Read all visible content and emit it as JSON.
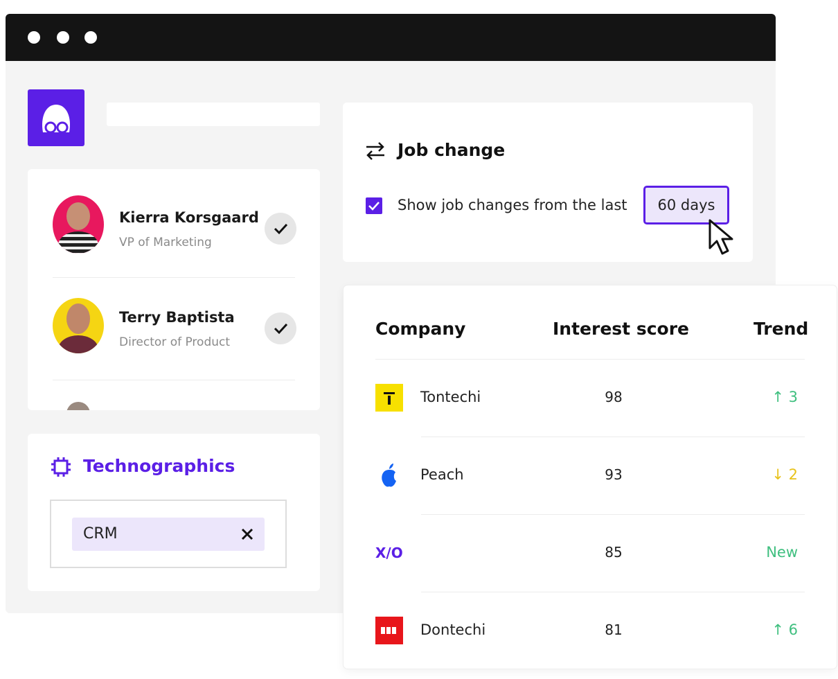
{
  "people": [
    {
      "name": "Kierra Korsgaard",
      "role": "VP of Marketing"
    },
    {
      "name": "Terry Baptista",
      "role": "Director of Product"
    }
  ],
  "job_change": {
    "title": "Job change",
    "checkbox_label": "Show job changes from the last",
    "button": "60 days"
  },
  "technographics": {
    "title": "Technographics",
    "chip": "CRM"
  },
  "table": {
    "headers": [
      "Company",
      "Interest score",
      "Trend"
    ],
    "rows": [
      {
        "name": "Tontechi",
        "score": 98,
        "trend": "↑ 3"
      },
      {
        "name": "Peach",
        "score": 93,
        "trend": "↓ 2"
      },
      {
        "logo": "X/O",
        "score": 85,
        "trend": "New"
      },
      {
        "name": "Dontechi",
        "score": 81,
        "trend": "↑ 6"
      }
    ]
  }
}
